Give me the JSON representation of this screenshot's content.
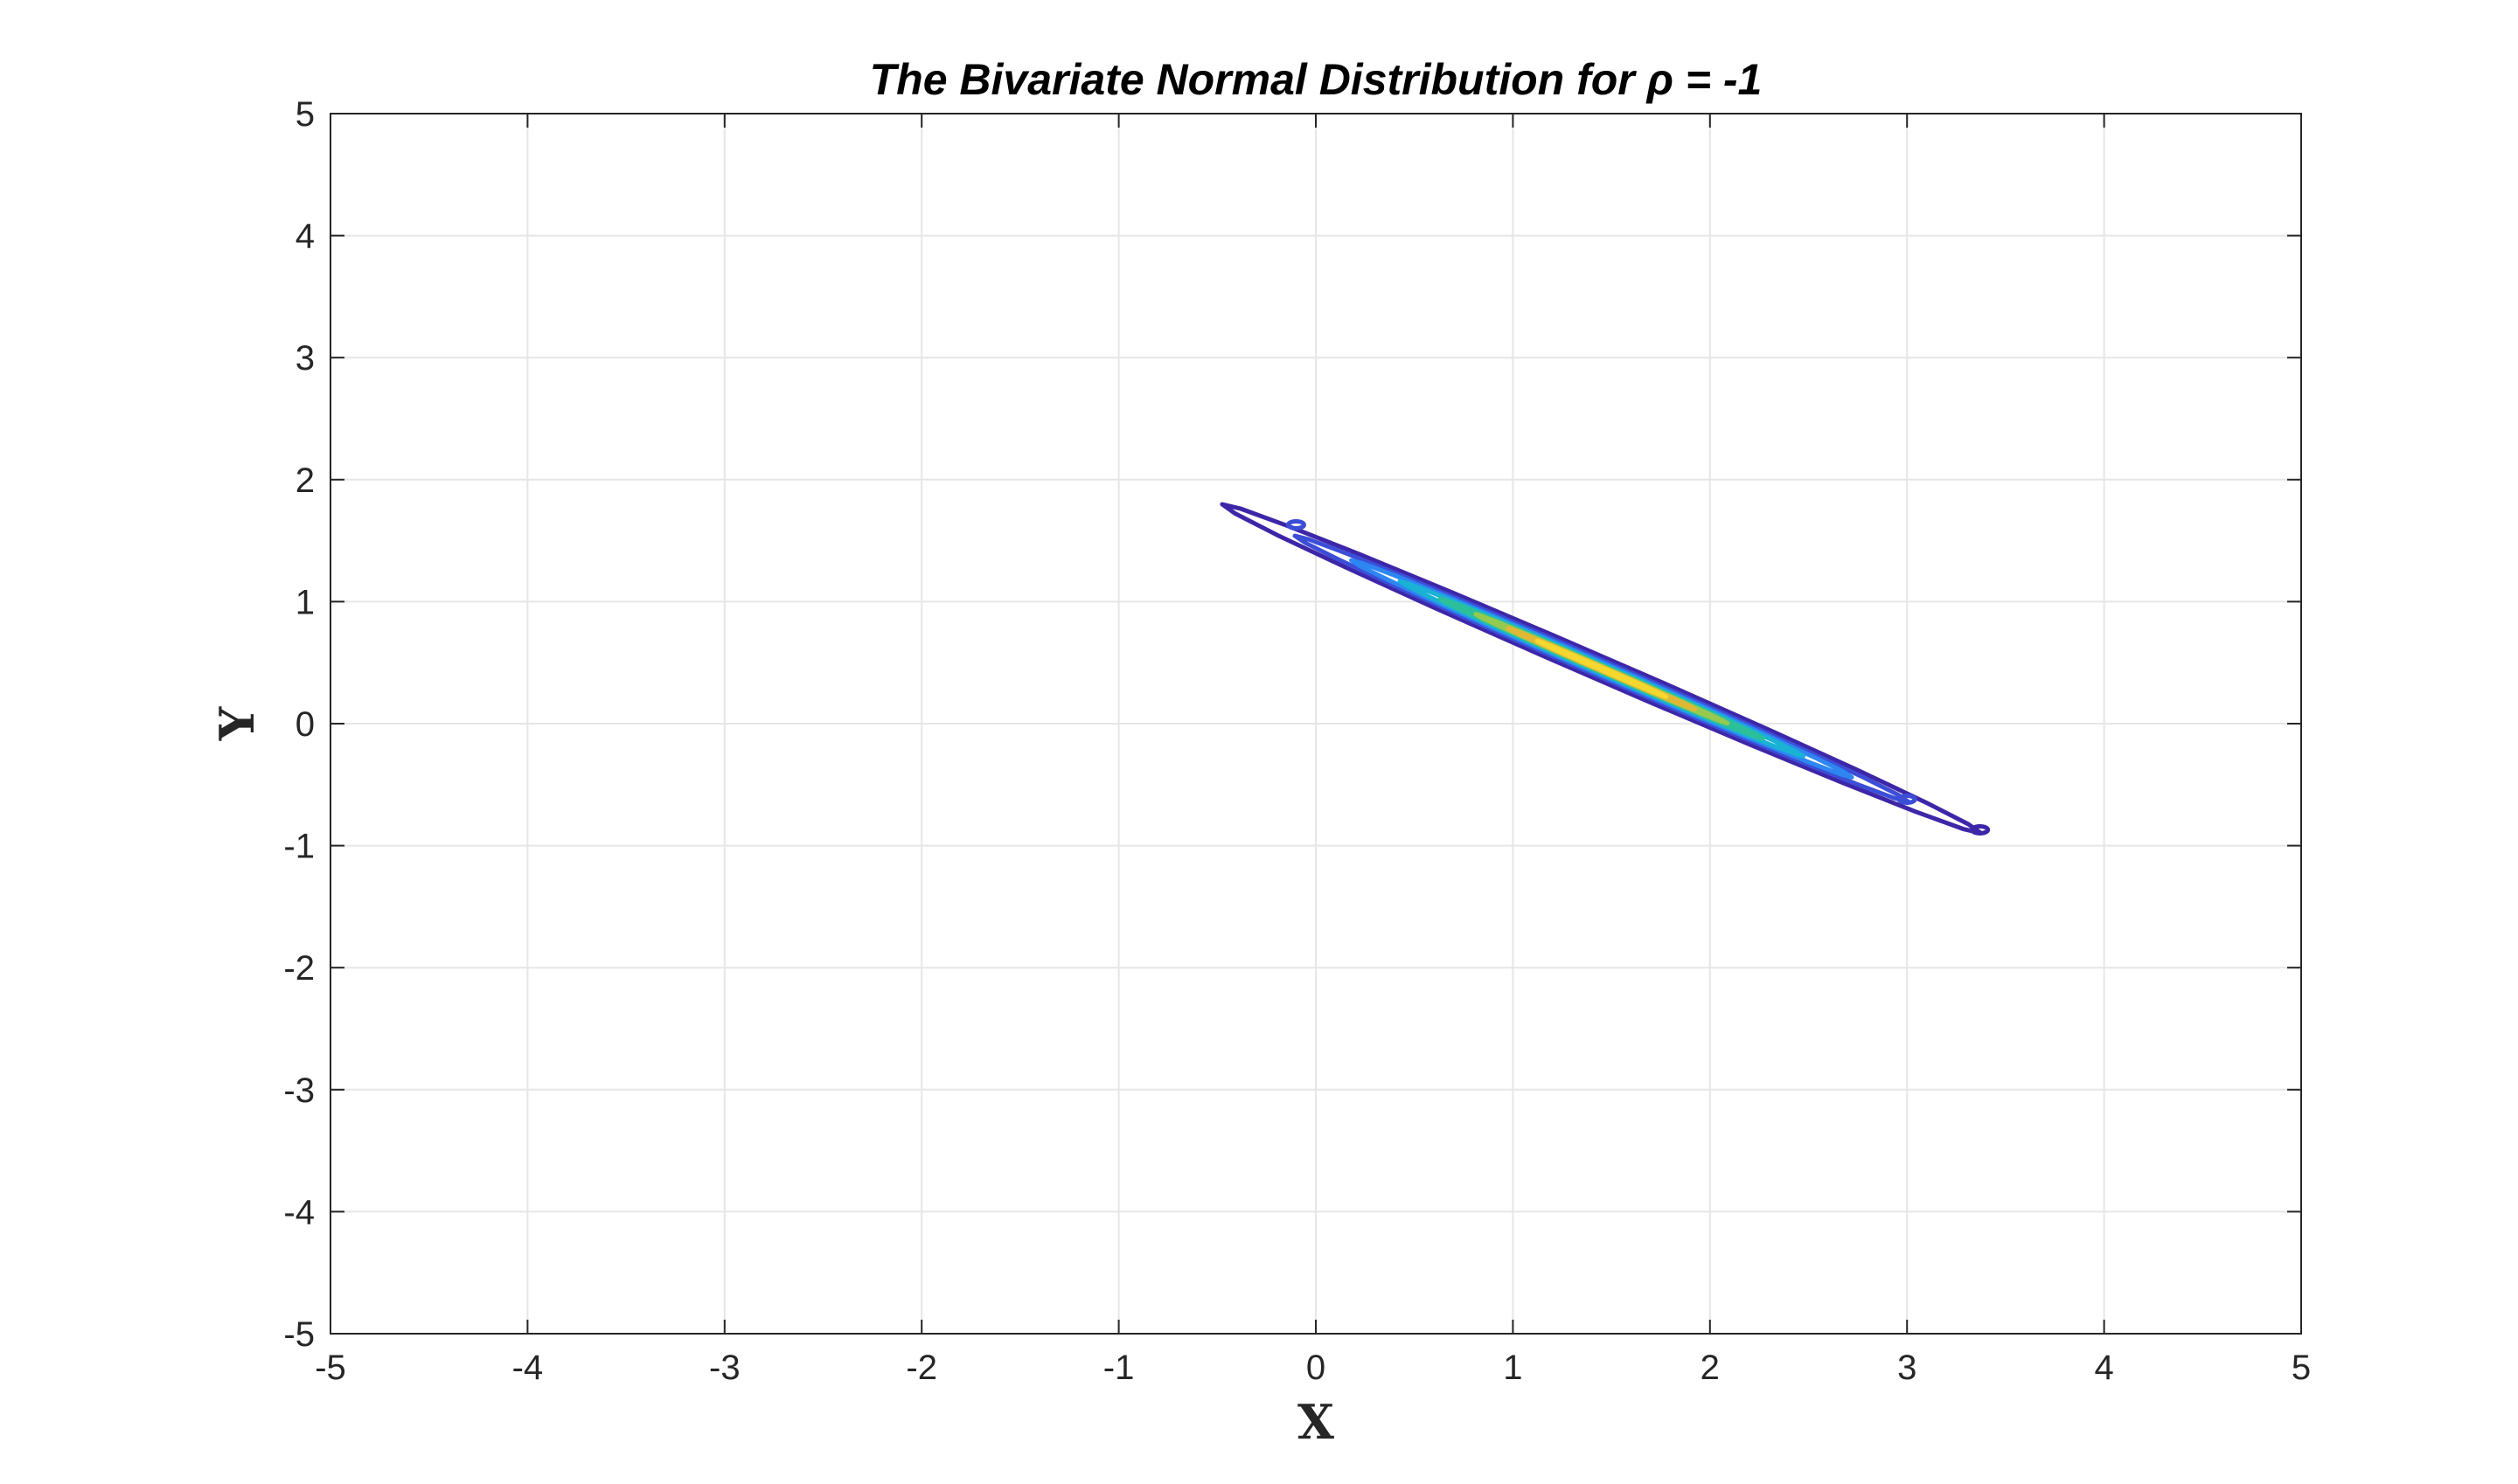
{
  "chart_data": {
    "type": "contour",
    "title": "The Bivariate Normal Distribution for ρ = -1",
    "xlabel": "X",
    "ylabel": "Y",
    "xlim": [
      -5,
      5
    ],
    "ylim": [
      -5,
      5
    ],
    "xticks": [
      -5,
      -4,
      -3,
      -2,
      -1,
      0,
      1,
      2,
      3,
      4,
      5
    ],
    "yticks": [
      -5,
      -4,
      -3,
      -2,
      -1,
      0,
      1,
      2,
      3,
      4,
      5
    ],
    "grid": true,
    "box": true,
    "contour_center": [
      1.45,
      0.45
    ],
    "contour_direction_slope": -0.7,
    "levels": [
      {
        "color": "#3e26a8",
        "half_length": 2.35,
        "half_width": 0.085
      },
      {
        "color": "#3c4ed6",
        "half_length": 1.9,
        "half_width": 0.06
      },
      {
        "color": "#2d86f2",
        "half_length": 1.55,
        "half_width": 0.045
      },
      {
        "color": "#1ab2d4",
        "half_length": 1.25,
        "half_width": 0.034
      },
      {
        "color": "#2cc09a",
        "half_length": 1.0,
        "half_width": 0.026
      },
      {
        "color": "#95c950",
        "half_length": 0.78,
        "half_width": 0.019
      },
      {
        "color": "#e0b836",
        "half_length": 0.58,
        "half_width": 0.014
      },
      {
        "color": "#f5d730",
        "half_length": 0.4,
        "half_width": 0.009
      }
    ],
    "islands": [
      {
        "x": -0.1,
        "y": 1.63,
        "color": "#3c4ed6"
      },
      {
        "x": 3.0,
        "y": -0.62,
        "color": "#3c4ed6"
      },
      {
        "x": 3.37,
        "y": -0.87,
        "color": "#3e26a8"
      }
    ]
  }
}
